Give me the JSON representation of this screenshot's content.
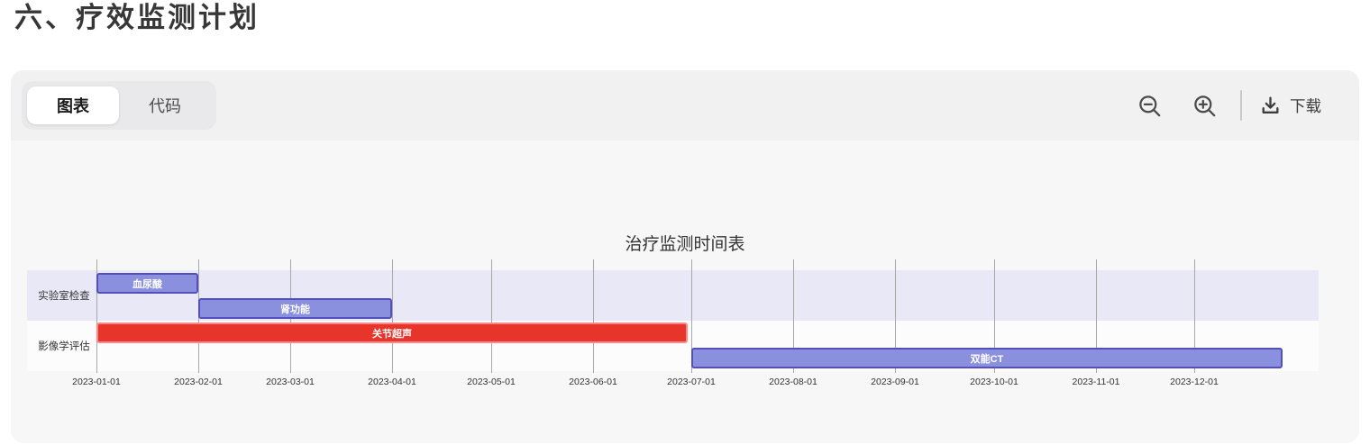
{
  "page": {
    "title": "六、疗效监测计划"
  },
  "tabs": [
    {
      "label": "图表",
      "active": true
    },
    {
      "label": "代码",
      "active": false
    }
  ],
  "toolbar": {
    "icons": [
      "zoom-out-icon",
      "zoom-in-icon",
      "download-icon"
    ],
    "download_label": "下载"
  },
  "chart_data": {
    "type": "gantt",
    "title": "治疗监测时间表",
    "date_format": "YYYY-MM-DD",
    "axis_start": "2023-01-01",
    "tick_labels": [
      "2023-01-01",
      "2023-02-01",
      "2023-03-01",
      "2023-04-01",
      "2023-05-01",
      "2023-06-01",
      "2023-07-01",
      "2023-08-01",
      "2023-09-01",
      "2023-10-01",
      "2023-11-01",
      "2023-12-01"
    ],
    "sections": [
      {
        "name": "实验室检查",
        "tasks": [
          {
            "label": "血尿酸",
            "start": "2023-01-01",
            "end": "2023-02-01",
            "critical": false
          },
          {
            "label": "肾功能",
            "start": "2023-02-01",
            "end": "2023-04-01",
            "critical": false
          }
        ]
      },
      {
        "name": "影像学评估",
        "tasks": [
          {
            "label": "关节超声",
            "start": "2023-01-01",
            "end": "2023-06-30",
            "critical": true
          },
          {
            "label": "双能CT",
            "start": "2023-07-01",
            "end": "2023-12-28",
            "critical": false
          }
        ]
      }
    ],
    "colors": {
      "task_fill": "#8a90dd",
      "task_stroke": "#534fbc",
      "crit_fill": "#e7352b",
      "crit_stroke": "#ff8888",
      "section_bands": [
        "#e8e8f7",
        "#fcfcfd"
      ],
      "grid": "#a8a8a8",
      "text": "#333333",
      "bar_text": "#ffffff"
    },
    "layout": {
      "legend": "none",
      "grid": "on",
      "rows_per_section": 2
    }
  }
}
